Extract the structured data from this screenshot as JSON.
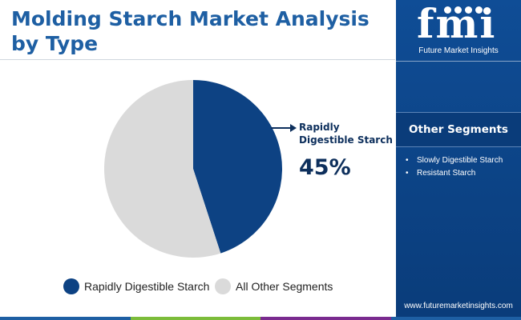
{
  "title": "Molding Starch Market Analysis by Type",
  "chart_data": {
    "type": "pie",
    "title": "Molding Starch Market Analysis by Type",
    "slices": [
      {
        "label": "Rapidly Digestible Starch",
        "value": 45,
        "color": "#0d4283"
      },
      {
        "label": "All Other Segments",
        "value": 55,
        "color": "#dadada"
      }
    ],
    "start_angle_deg": 0,
    "direction": "clockwise",
    "legend_position": "bottom",
    "callout": {
      "label": "Rapidly Digestible Starch",
      "value_text": "45%"
    }
  },
  "legend": [
    {
      "label": "Rapidly Digestible Starch",
      "color": "#0d4283"
    },
    {
      "label": "All Other Segments",
      "color": "#dadada"
    }
  ],
  "sidebar": {
    "logo_text": "fmi",
    "logo_subtitle": "Future Market Insights",
    "other_segments_heading": "Other Segments",
    "other_segments": [
      "Slowly Digestible Starch",
      "Resistant Starch"
    ],
    "website": "www.futuremarketinsights.com"
  },
  "colors": {
    "title": "#1e5fa3",
    "panel": "#0f4d96",
    "bottom_bar": [
      "#1e5fa3",
      "#7cbc3a",
      "#7a2b8f",
      "#1e5fa3"
    ]
  }
}
